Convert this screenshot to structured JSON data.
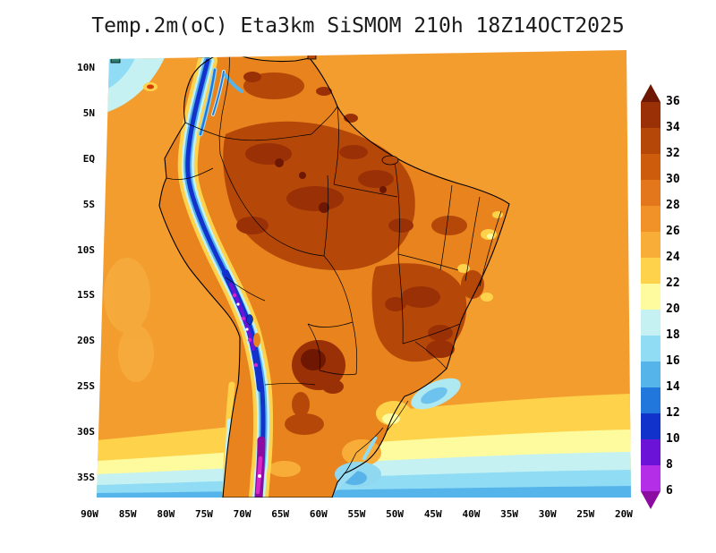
{
  "title": "Temp.2m(oC) Eta3km SiSMOM 210h 18Z14OCT2025",
  "axes": {
    "lat_ticks": [
      "10N",
      "5N",
      "EQ",
      "5S",
      "10S",
      "15S",
      "20S",
      "25S",
      "30S",
      "35S"
    ],
    "lon_ticks": [
      "90W",
      "85W",
      "80W",
      "75W",
      "70W",
      "65W",
      "60W",
      "55W",
      "50W",
      "45W",
      "40W",
      "35W",
      "30W",
      "25W",
      "20W"
    ]
  },
  "colorbar": {
    "labels": [
      "36",
      "34",
      "32",
      "30",
      "28",
      "26",
      "24",
      "22",
      "20",
      "18",
      "16",
      "14",
      "12",
      "10",
      "8",
      "6"
    ],
    "colors_top_to_bottom": [
      "#6e1702",
      "#9a3005",
      "#b54809",
      "#cd5d0d",
      "#e3771b",
      "#f09227",
      "#f9ad39",
      "#ffd24b",
      "#fdfb9e",
      "#c6f1f2",
      "#8fdcf4",
      "#55b4ea",
      "#2277dd",
      "#1133cc",
      "#6b14d8",
      "#b42ee8",
      "#8c0ba0"
    ]
  },
  "chart_data": {
    "type": "heatmap",
    "title": "Temp.2m(oC) Eta3km SiSMOM 210h 18Z14OCT2025",
    "variable": "Temp.2m",
    "units": "oC",
    "model": "Eta3km SiSMOM",
    "forecast_hour": "210h",
    "valid_time": "18Z14OCT2025",
    "lat_ticks": [
      "10N",
      "5N",
      "EQ",
      "5S",
      "10S",
      "15S",
      "20S",
      "25S",
      "30S",
      "35S"
    ],
    "lon_ticks": [
      "90W",
      "85W",
      "80W",
      "75W",
      "70W",
      "65W",
      "60W",
      "55W",
      "50W",
      "45W",
      "40W",
      "35W",
      "30W",
      "25W",
      "20W"
    ],
    "levels": [
      6,
      8,
      10,
      12,
      14,
      16,
      18,
      20,
      22,
      24,
      26,
      28,
      30,
      32,
      34,
      36
    ],
    "palette_top_to_bottom": [
      "#6e1702",
      "#9a3005",
      "#b54809",
      "#cd5d0d",
      "#e3771b",
      "#f09227",
      "#f9ad39",
      "#ffd24b",
      "#fdfb9e",
      "#c6f1f2",
      "#8fdcf4",
      "#55b4ea",
      "#2277dd",
      "#1133cc",
      "#6b14d8",
      "#b42ee8",
      "#8c0ba0"
    ],
    "legend_position": "right",
    "grid": false
  }
}
